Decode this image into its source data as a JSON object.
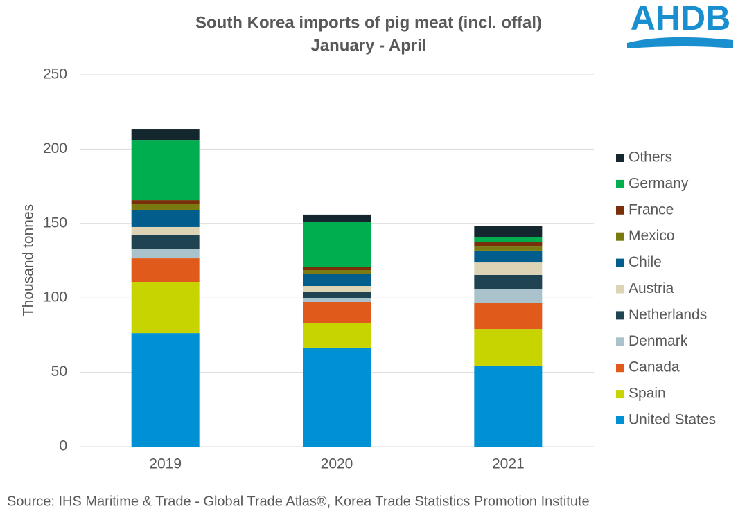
{
  "logo": "AHDB",
  "chart_data": {
    "type": "stacked-bar",
    "title": "South Korea imports of pig meat (incl. offal)",
    "subtitle": "January - April",
    "y_label": "Thousand tonnes",
    "source": "Source: IHS Maritime & Trade - Global Trade Atlas®, Korea Trade Statistics Promotion Institute",
    "categories": [
      "2019",
      "2020",
      "2021"
    ],
    "ylim": [
      0,
      250
    ],
    "yticks": [
      0,
      50,
      100,
      150,
      200,
      250
    ],
    "grid": true,
    "legend": "right",
    "series": [
      {
        "name": "United States",
        "color": "#0090d4",
        "values": [
          76.3,
          66.6,
          54.5
        ]
      },
      {
        "name": "Spain",
        "color": "#c8d400",
        "values": [
          34.5,
          16.3,
          24.6
        ]
      },
      {
        "name": "Canada",
        "color": "#e05a1b",
        "values": [
          15.8,
          14.4,
          17.3
        ]
      },
      {
        "name": "Denmark",
        "color": "#a9c2cb",
        "values": [
          6.1,
          2.8,
          9.7
        ]
      },
      {
        "name": "Netherlands",
        "color": "#1f4350",
        "values": [
          9.8,
          4.2,
          9.4
        ]
      },
      {
        "name": "Austria",
        "color": "#ddd3b5",
        "values": [
          5.1,
          3.7,
          8.3
        ]
      },
      {
        "name": "Chile",
        "color": "#005d8c",
        "values": [
          11.6,
          8.4,
          8.0
        ]
      },
      {
        "name": "Mexico",
        "color": "#7a7a10",
        "values": [
          4.2,
          2.3,
          2.7
        ]
      },
      {
        "name": "France",
        "color": "#7a2f0b",
        "values": [
          2.3,
          1.9,
          3.3
        ]
      },
      {
        "name": "Germany",
        "color": "#00ae4f",
        "values": [
          40.5,
          30.7,
          2.8
        ]
      },
      {
        "name": "Others",
        "color": "#14262e",
        "values": [
          7.0,
          4.7,
          7.9
        ]
      }
    ]
  }
}
